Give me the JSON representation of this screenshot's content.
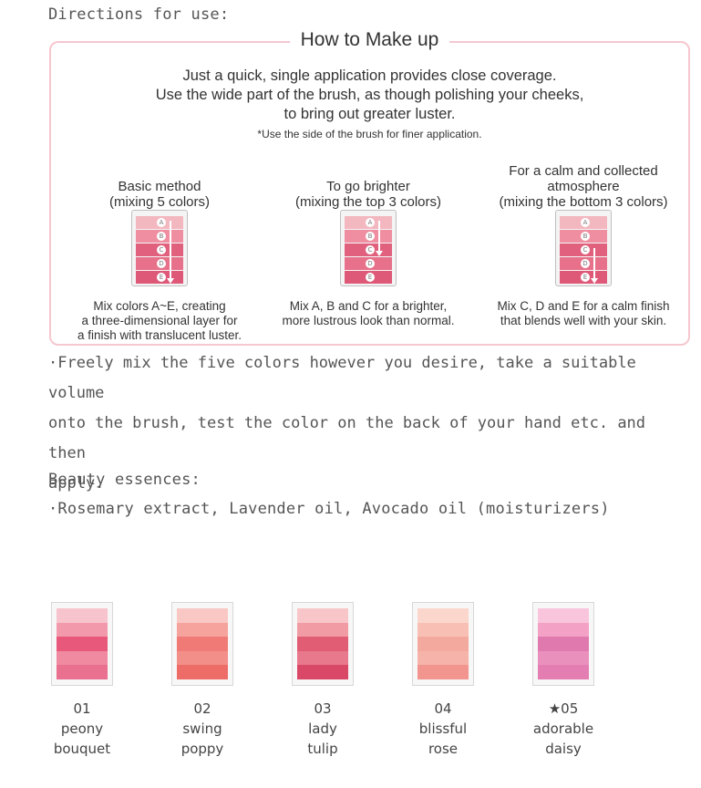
{
  "directions_heading": "Directions for use:",
  "how_to": {
    "title": "How to Make up",
    "intro_lines": [
      "Just a quick, single application provides close coverage.",
      "Use the wide part of the brush, as though polishing your cheeks,",
      "to bring out greater luster."
    ],
    "note": "*Use the side of the brush for finer application.",
    "methods": [
      {
        "title_lines": [
          "Basic method",
          "(mixing 5 colors)"
        ],
        "desc_lines": [
          "Mix colors A~E, creating",
          "a three-dimensional layer for",
          "a finish with translucent luster."
        ],
        "colors": [
          "#f3b7c0",
          "#ef8ea0",
          "#e0607e",
          "#e7718a",
          "#de5878"
        ],
        "labels": [
          "A",
          "B",
          "C",
          "D",
          "E"
        ]
      },
      {
        "title_lines": [
          "To go brighter",
          "(mixing the top 3 colors)"
        ],
        "desc_lines": [
          "Mix A, B and C for a brighter,",
          "more lustrous look than normal."
        ],
        "colors": [
          "#f3b7c0",
          "#ef8ea0",
          "#e0607e",
          "#e7718a",
          "#de5878"
        ],
        "labels": [
          "A",
          "B",
          "C",
          "D",
          "E"
        ]
      },
      {
        "title_lines": [
          "For a calm and collected",
          "atmosphere",
          "(mixing the bottom 3 colors)"
        ],
        "desc_lines": [
          "Mix C, D and E for a calm finish",
          "that blends well with your skin."
        ],
        "colors": [
          "#f3b7c0",
          "#ef8ea0",
          "#e0607e",
          "#e7718a",
          "#de5878"
        ],
        "labels": [
          "A",
          "B",
          "C",
          "D",
          "E"
        ]
      }
    ]
  },
  "mix_paragraph_lines": [
    "·Freely mix the five colors however you desire, take a suitable volume",
    "onto the brush, test the color on the back of your hand etc. and then",
    "apply."
  ],
  "beauty_heading": "Beauty essences:",
  "beauty_text": "·Rosemary extract, Lavender oil, Avocado oil (moisturizers)",
  "products": [
    {
      "code": "01",
      "name_lines": [
        "peony",
        "bouquet"
      ],
      "colors": [
        "#f7c3cc",
        "#f29aab",
        "#e7587a",
        "#ef8aa0",
        "#e9708e"
      ]
    },
    {
      "code": "02",
      "name_lines": [
        "swing",
        "poppy"
      ],
      "colors": [
        "#f9c8c4",
        "#f6a39d",
        "#f07b76",
        "#f38f89",
        "#ee6c68"
      ]
    },
    {
      "code": "03",
      "name_lines": [
        "lady",
        "tulip"
      ],
      "colors": [
        "#f8c6c9",
        "#f19ba4",
        "#e15d74",
        "#e8788b",
        "#d94867"
      ]
    },
    {
      "code": "04",
      "name_lines": [
        "blissful",
        "rose"
      ],
      "colors": [
        "#fbd6cc",
        "#f8c0b5",
        "#f4a99f",
        "#f6b3aa",
        "#f2958f"
      ]
    },
    {
      "code": "★05",
      "name_lines": [
        "adorable",
        "daisy"
      ],
      "colors": [
        "#f8c5dc",
        "#f3a2c6",
        "#e07aae",
        "#ea90bd",
        "#e37db2"
      ]
    }
  ]
}
